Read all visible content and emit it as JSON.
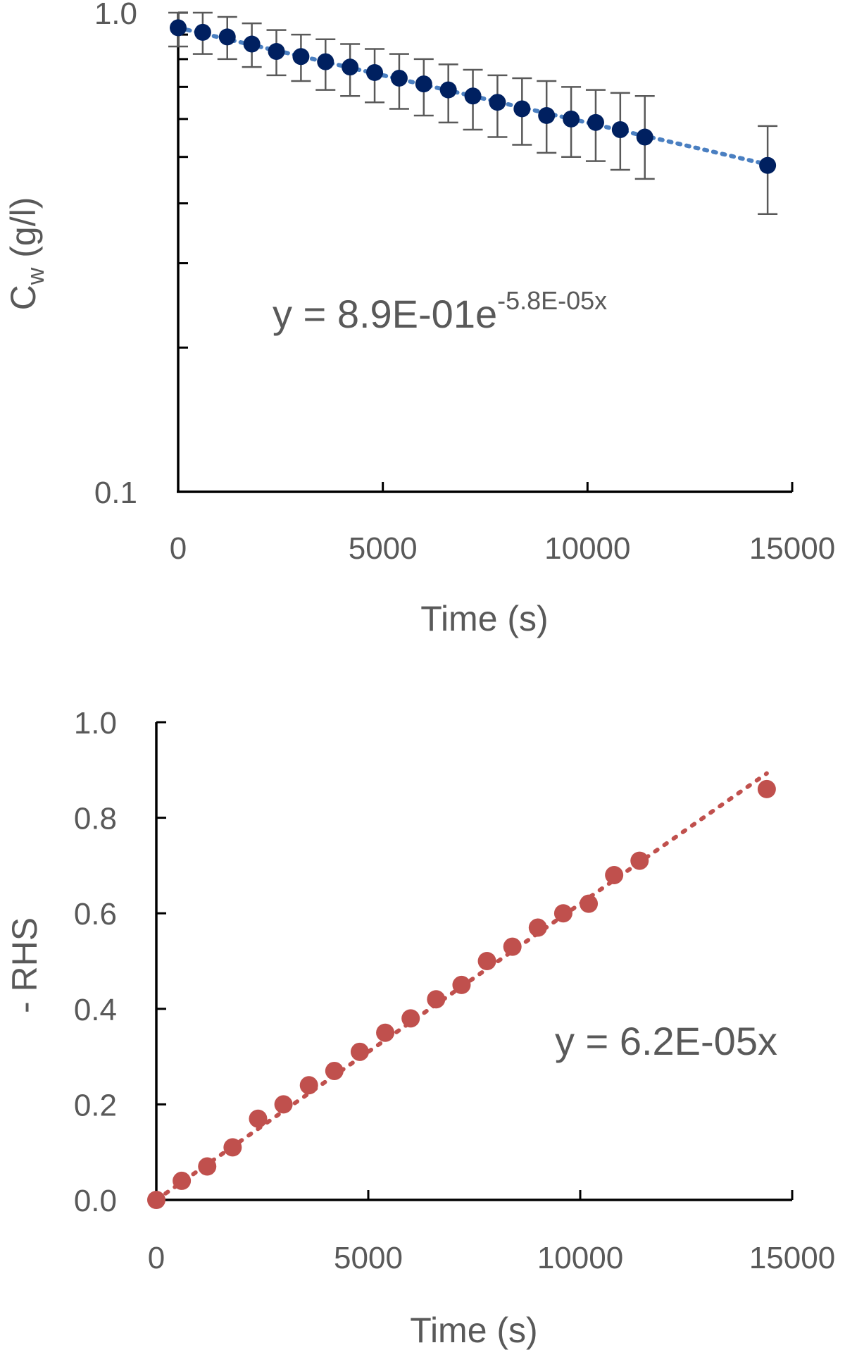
{
  "chart_data": [
    {
      "type": "scatter",
      "title": "",
      "xlabel": "Time (s)",
      "ylabel": {
        "main": "C",
        "sub": "w",
        "unit": " (g/l)"
      },
      "yscale": "log",
      "xlim": [
        0,
        15000
      ],
      "ylim": [
        0.1,
        1.0
      ],
      "x_tick_labels": [
        "0",
        "5000",
        "10000",
        "15000"
      ],
      "y_tick_labels": [
        "0.1",
        "1.0"
      ],
      "equation": {
        "base": "y = 8.9E-01e",
        "exponent": "-5.8E-05x"
      },
      "trendline": "exponential",
      "colors": {
        "marker": "#002060",
        "trendline": "#4a7fc1",
        "errorbar": "#595959"
      },
      "series": [
        {
          "x": [
            0,
            600,
            1200,
            1800,
            2400,
            3000,
            3600,
            4200,
            4800,
            5400,
            6000,
            6600,
            7200,
            7800,
            8400,
            9000,
            9600,
            10200,
            10800,
            11400,
            14400
          ],
          "y": [
            0.93,
            0.91,
            0.89,
            0.86,
            0.83,
            0.81,
            0.79,
            0.77,
            0.75,
            0.73,
            0.71,
            0.69,
            0.67,
            0.65,
            0.63,
            0.61,
            0.6,
            0.59,
            0.57,
            0.55,
            0.48
          ],
          "yerr_low": [
            0.85,
            0.82,
            0.8,
            0.77,
            0.74,
            0.72,
            0.69,
            0.67,
            0.65,
            0.63,
            0.61,
            0.59,
            0.57,
            0.55,
            0.53,
            0.51,
            0.5,
            0.49,
            0.47,
            0.45,
            0.38
          ],
          "yerr_high": [
            1.0,
            1.0,
            0.98,
            0.95,
            0.92,
            0.9,
            0.88,
            0.86,
            0.84,
            0.82,
            0.8,
            0.78,
            0.76,
            0.74,
            0.73,
            0.72,
            0.7,
            0.69,
            0.68,
            0.67,
            0.58
          ]
        }
      ]
    },
    {
      "type": "scatter",
      "title": "",
      "xlabel": "Time (s)",
      "ylabel": "- RHS",
      "xlim": [
        0,
        15000
      ],
      "ylim": [
        0,
        1.0
      ],
      "x_tick_labels": [
        "0",
        "5000",
        "10000",
        "15000"
      ],
      "y_tick_labels": [
        "0.0",
        "0.2",
        "0.4",
        "0.6",
        "0.8",
        "1.0"
      ],
      "equation": {
        "base": "y = 6.2E-05x"
      },
      "trendline": "linear",
      "colors": {
        "marker": "#c0504d",
        "trendline": "#c0504d"
      },
      "series": [
        {
          "x": [
            0,
            600,
            1200,
            1800,
            2400,
            3000,
            3600,
            4200,
            4800,
            5400,
            6000,
            6600,
            7200,
            7800,
            8400,
            9000,
            9600,
            10200,
            10800,
            11400,
            14400
          ],
          "y": [
            0.0,
            0.04,
            0.07,
            0.11,
            0.17,
            0.2,
            0.24,
            0.27,
            0.31,
            0.35,
            0.38,
            0.42,
            0.45,
            0.5,
            0.53,
            0.57,
            0.6,
            0.62,
            0.68,
            0.71,
            0.86
          ]
        }
      ]
    }
  ]
}
